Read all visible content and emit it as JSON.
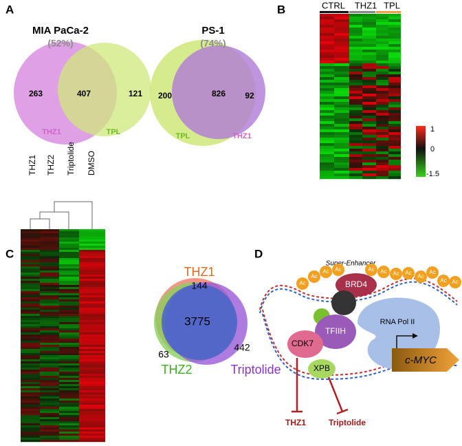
{
  "panels": {
    "A": {
      "label": "A",
      "venns": [
        {
          "title": "MIA PaCa-2",
          "subtitle": "(52%)",
          "left_only": 263,
          "overlap": 407,
          "right_only": 121,
          "left_label": "THZ1",
          "right_label": "TPL"
        },
        {
          "title": "PS-1",
          "subtitle": "(74%)",
          "left_only": 200,
          "overlap": 826,
          "right_only": 92,
          "left_label": "TPL",
          "right_label": "THZ1"
        }
      ]
    },
    "B": {
      "label": "B",
      "columns": [
        "CTRL",
        "THZ1",
        "TPL"
      ],
      "colorbar_ticks": [
        1,
        0,
        -1.5
      ]
    },
    "C": {
      "label": "C",
      "columns": [
        "THZ1",
        "THZ2",
        "Triptolide",
        "DMSO"
      ],
      "venn": {
        "sets": [
          "THZ1",
          "THZ2",
          "Triptolide"
        ],
        "thz1_only": 144,
        "thz2_only": 63,
        "triptolide_only": 442,
        "shared": 3775
      }
    },
    "D": {
      "label": "D",
      "super_enhancer": "Super-Enhancer",
      "acetyl": "Ac",
      "brd4": "BRD4",
      "pol2": "RNA Pol II",
      "tfiih": "TFIIH",
      "cdk7": "CDK7",
      "xpb": "XPB",
      "gene": "c-MYC",
      "inhibitor1": "THZ1",
      "inhibitor2": "Triptolide"
    }
  }
}
